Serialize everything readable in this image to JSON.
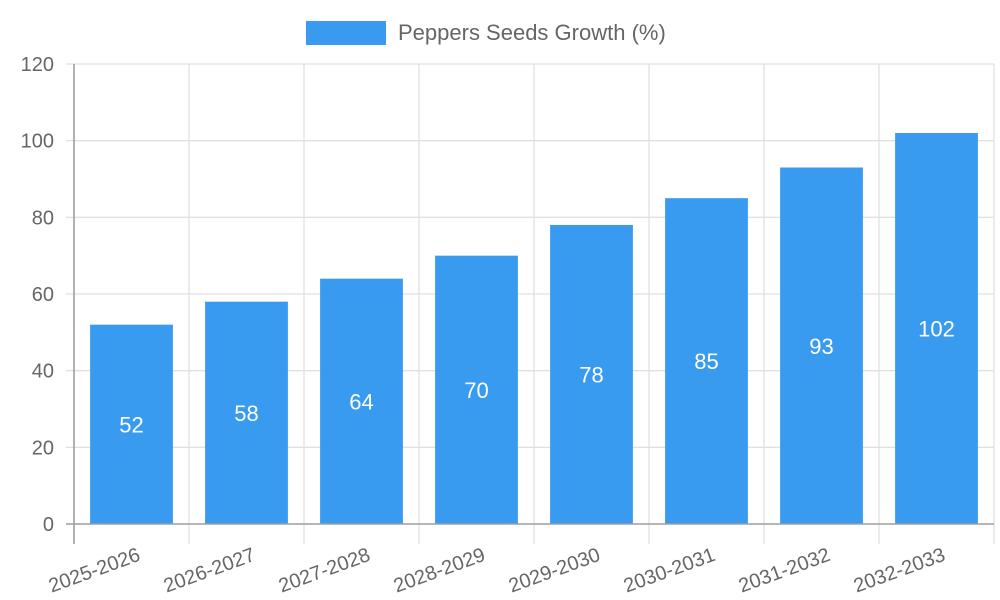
{
  "chart_data": {
    "type": "bar",
    "title": "",
    "xlabel": "",
    "ylabel": "",
    "categories": [
      "2025-2026",
      "2026-2027",
      "2027-2028",
      "2028-2029",
      "2029-2030",
      "2030-2031",
      "2031-2032",
      "2032-2033"
    ],
    "series": [
      {
        "name": "Peppers Seeds Growth (%)",
        "values": [
          52,
          58,
          64,
          70,
          78,
          85,
          93,
          102
        ],
        "color": "#389bf0"
      }
    ],
    "ylim": [
      0,
      120
    ],
    "yticks": [
      0,
      20,
      40,
      60,
      80,
      100,
      120
    ],
    "grid": true,
    "legend_position": "top",
    "data_labels": true
  },
  "legend": {
    "label": "Peppers Seeds Growth (%)",
    "color": "#389bf0"
  },
  "colors": {
    "grid": "#e0e0e0",
    "axis": "#a0a0a0",
    "text": "#666666",
    "bar": "#389bf0"
  }
}
